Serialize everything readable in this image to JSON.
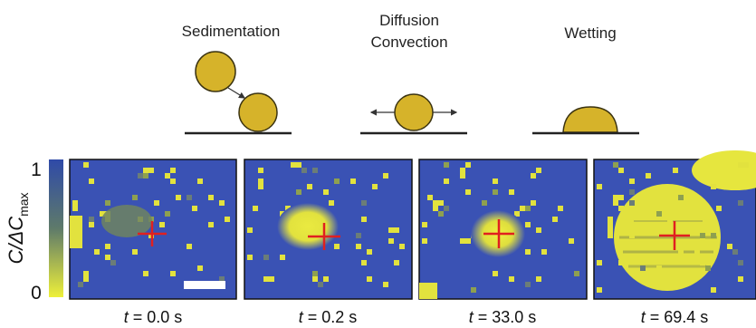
{
  "stages": [
    {
      "label": "Sedimentation"
    },
    {
      "label_line1": "Diffusion",
      "label_line2": "Convection"
    },
    {
      "label": "Wetting"
    }
  ],
  "colorbar": {
    "max_label": "1",
    "min_label": "0",
    "title_main": "C/ΔC",
    "title_sub": "max",
    "colors": {
      "low": "#e8e838",
      "high": "#3a52b4"
    }
  },
  "frames": [
    {
      "t_var": "t",
      "t_text": " = 0.0 s"
    },
    {
      "t_var": "t",
      "t_text": " = 0.2 s"
    },
    {
      "t_var": "t",
      "t_text": " = 33.0 s"
    },
    {
      "t_var": "t",
      "t_text": " = 69.4 s"
    }
  ],
  "colors": {
    "background_blue": "#3a52b4",
    "pixel_yellow": "#e0e040",
    "droplet_fill": "#d6b32a",
    "crosshair": "#e02020"
  }
}
